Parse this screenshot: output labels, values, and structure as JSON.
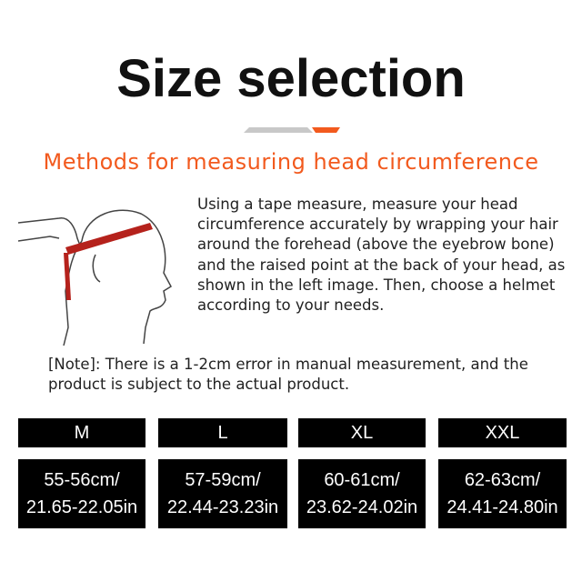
{
  "title": "Size selection",
  "subtitle": "Methods for measuring head circumference",
  "accent_color": "#f25a1e",
  "illustration": "head-measuring-tape",
  "description": "Using a tape measure, measure your head circumference accurately by wrapping your hair around the forehead (above the eyebrow bone) and the raised point at the back of your head, as shown in the left image. Then, choose a helmet according to your needs.",
  "note": "[Note]: There is a 1-2cm error in manual measurement, and the product is subject to the actual product.",
  "sizes": [
    {
      "label": "M",
      "cm": "55-56cm/",
      "inch": "21.65-22.05in"
    },
    {
      "label": "L",
      "cm": "57-59cm/",
      "inch": "22.44-23.23in"
    },
    {
      "label": "XL",
      "cm": "60-61cm/",
      "inch": "23.62-24.02in"
    },
    {
      "label": "XXL",
      "cm": "62-63cm/",
      "inch": "24.41-24.80in"
    }
  ]
}
